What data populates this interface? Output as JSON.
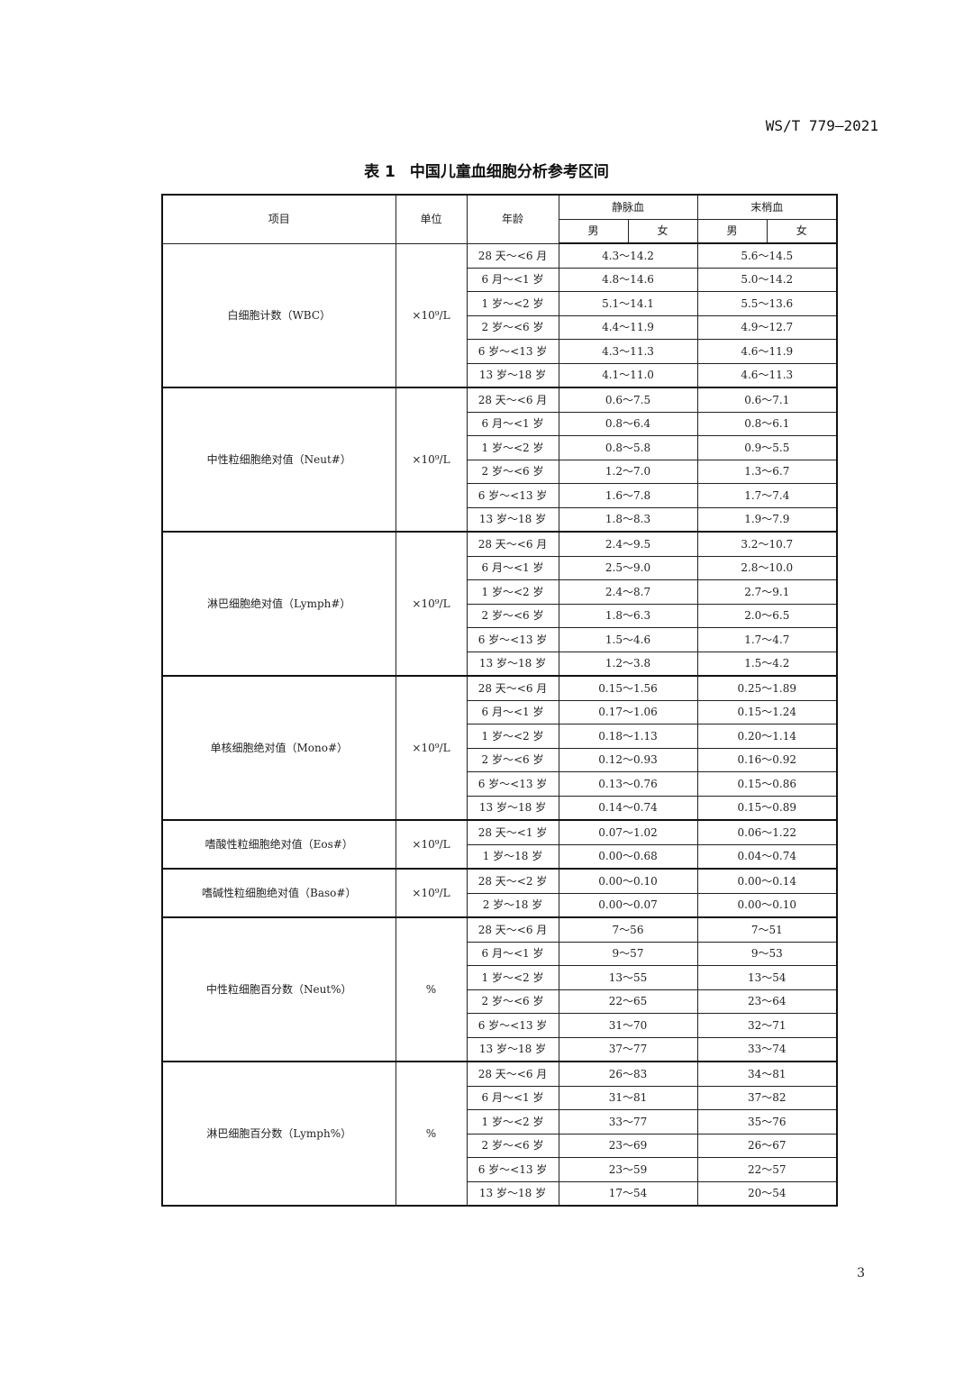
{
  "header": {
    "standard_code": "WS/T 779—2021"
  },
  "table": {
    "number": "表 1",
    "title": "中国儿童血细胞分析参考区间",
    "columns": {
      "item": "项目",
      "unit": "单位",
      "age": "年龄",
      "venous": "静脉血",
      "capillary": "末梢血",
      "male": "男",
      "female": "女"
    },
    "groups": [
      {
        "item": "白细胞计数（WBC）",
        "unit": "×10⁹/L",
        "rows": [
          {
            "age": "28 天～<6 月",
            "venous": "4.3～14.2",
            "capillary": "5.6～14.5"
          },
          {
            "age": "6 月～<1 岁",
            "venous": "4.8～14.6",
            "capillary": "5.0～14.2"
          },
          {
            "age": "1 岁～<2 岁",
            "venous": "5.1～14.1",
            "capillary": "5.5～13.6"
          },
          {
            "age": "2 岁～<6 岁",
            "venous": "4.4～11.9",
            "capillary": "4.9～12.7"
          },
          {
            "age": "6 岁～<13 岁",
            "venous": "4.3～11.3",
            "capillary": "4.6～11.9"
          },
          {
            "age": "13 岁～18 岁",
            "venous": "4.1～11.0",
            "capillary": "4.6～11.3"
          }
        ]
      },
      {
        "item": "中性粒细胞绝对值（Neut#）",
        "unit": "×10⁹/L",
        "rows": [
          {
            "age": "28 天～<6 月",
            "venous": "0.6～7.5",
            "capillary": "0.6～7.1"
          },
          {
            "age": "6 月～<1 岁",
            "venous": "0.8～6.4",
            "capillary": "0.8～6.1"
          },
          {
            "age": "1 岁～<2 岁",
            "venous": "0.8～5.8",
            "capillary": "0.9～5.5"
          },
          {
            "age": "2 岁～<6 岁",
            "venous": "1.2～7.0",
            "capillary": "1.3～6.7"
          },
          {
            "age": "6 岁～<13 岁",
            "venous": "1.6～7.8",
            "capillary": "1.7～7.4"
          },
          {
            "age": "13 岁～18 岁",
            "venous": "1.8～8.3",
            "capillary": "1.9～7.9"
          }
        ]
      },
      {
        "item": "淋巴细胞绝对值（Lymph#）",
        "unit": "×10⁹/L",
        "rows": [
          {
            "age": "28 天～<6 月",
            "venous": "2.4～9.5",
            "capillary": "3.2～10.7"
          },
          {
            "age": "6 月～<1 岁",
            "venous": "2.5～9.0",
            "capillary": "2.8～10.0"
          },
          {
            "age": "1 岁～<2 岁",
            "venous": "2.4～8.7",
            "capillary": "2.7～9.1"
          },
          {
            "age": "2 岁～<6 岁",
            "venous": "1.8～6.3",
            "capillary": "2.0～6.5"
          },
          {
            "age": "6 岁～<13 岁",
            "venous": "1.5～4.6",
            "capillary": "1.7～4.7"
          },
          {
            "age": "13 岁～18 岁",
            "venous": "1.2～3.8",
            "capillary": "1.5～4.2"
          }
        ]
      },
      {
        "item": "单核细胞绝对值（Mono#）",
        "unit": "×10⁹/L",
        "rows": [
          {
            "age": "28 天～<6 月",
            "venous": "0.15～1.56",
            "capillary": "0.25～1.89"
          },
          {
            "age": "6 月～<1 岁",
            "venous": "0.17～1.06",
            "capillary": "0.15～1.24"
          },
          {
            "age": "1 岁～<2 岁",
            "venous": "0.18～1.13",
            "capillary": "0.20～1.14"
          },
          {
            "age": "2 岁～<6 岁",
            "venous": "0.12～0.93",
            "capillary": "0.16～0.92"
          },
          {
            "age": "6 岁～<13 岁",
            "venous": "0.13～0.76",
            "capillary": "0.15～0.86"
          },
          {
            "age": "13 岁～18 岁",
            "venous": "0.14～0.74",
            "capillary": "0.15～0.89"
          }
        ]
      },
      {
        "item": "嗜酸性粒细胞绝对值（Eos#）",
        "unit": "×10⁹/L",
        "rows": [
          {
            "age": "28 天～<1 岁",
            "venous": "0.07～1.02",
            "capillary": "0.06～1.22"
          },
          {
            "age": "1 岁～18 岁",
            "venous": "0.00～0.68",
            "capillary": "0.04～0.74"
          }
        ]
      },
      {
        "item": "嗜碱性粒细胞绝对值（Baso#）",
        "unit": "×10⁹/L",
        "rows": [
          {
            "age": "28 天～<2 岁",
            "venous": "0.00～0.10",
            "capillary": "0.00～0.14"
          },
          {
            "age": "2 岁～18 岁",
            "venous": "0.00～0.07",
            "capillary": "0.00～0.10"
          }
        ]
      },
      {
        "item": "中性粒细胞百分数（Neut%）",
        "unit": "%",
        "rows": [
          {
            "age": "28 天～<6 月",
            "venous": "7～56",
            "capillary": "7～51"
          },
          {
            "age": "6 月～<1 岁",
            "venous": "9～57",
            "capillary": "9～53"
          },
          {
            "age": "1 岁～<2 岁",
            "venous": "13～55",
            "capillary": "13～54"
          },
          {
            "age": "2 岁～<6 岁",
            "venous": "22～65",
            "capillary": "23～64"
          },
          {
            "age": "6 岁～<13 岁",
            "venous": "31～70",
            "capillary": "32～71"
          },
          {
            "age": "13 岁～18 岁",
            "venous": "37～77",
            "capillary": "33～74"
          }
        ]
      },
      {
        "item": "淋巴细胞百分数（Lymph%）",
        "unit": "%",
        "rows": [
          {
            "age": "28 天～<6 月",
            "venous": "26～83",
            "capillary": "34～81"
          },
          {
            "age": "6 月～<1 岁",
            "venous": "31～81",
            "capillary": "37～82"
          },
          {
            "age": "1 岁～<2 岁",
            "venous": "33～77",
            "capillary": "35～76"
          },
          {
            "age": "2 岁～<6 岁",
            "venous": "23～69",
            "capillary": "26～67"
          },
          {
            "age": "6 岁～<13 岁",
            "venous": "23～59",
            "capillary": "22～57"
          },
          {
            "age": "13 岁～18 岁",
            "venous": "17～54",
            "capillary": "20～54"
          }
        ]
      }
    ]
  },
  "footer": {
    "page_number": "3"
  }
}
